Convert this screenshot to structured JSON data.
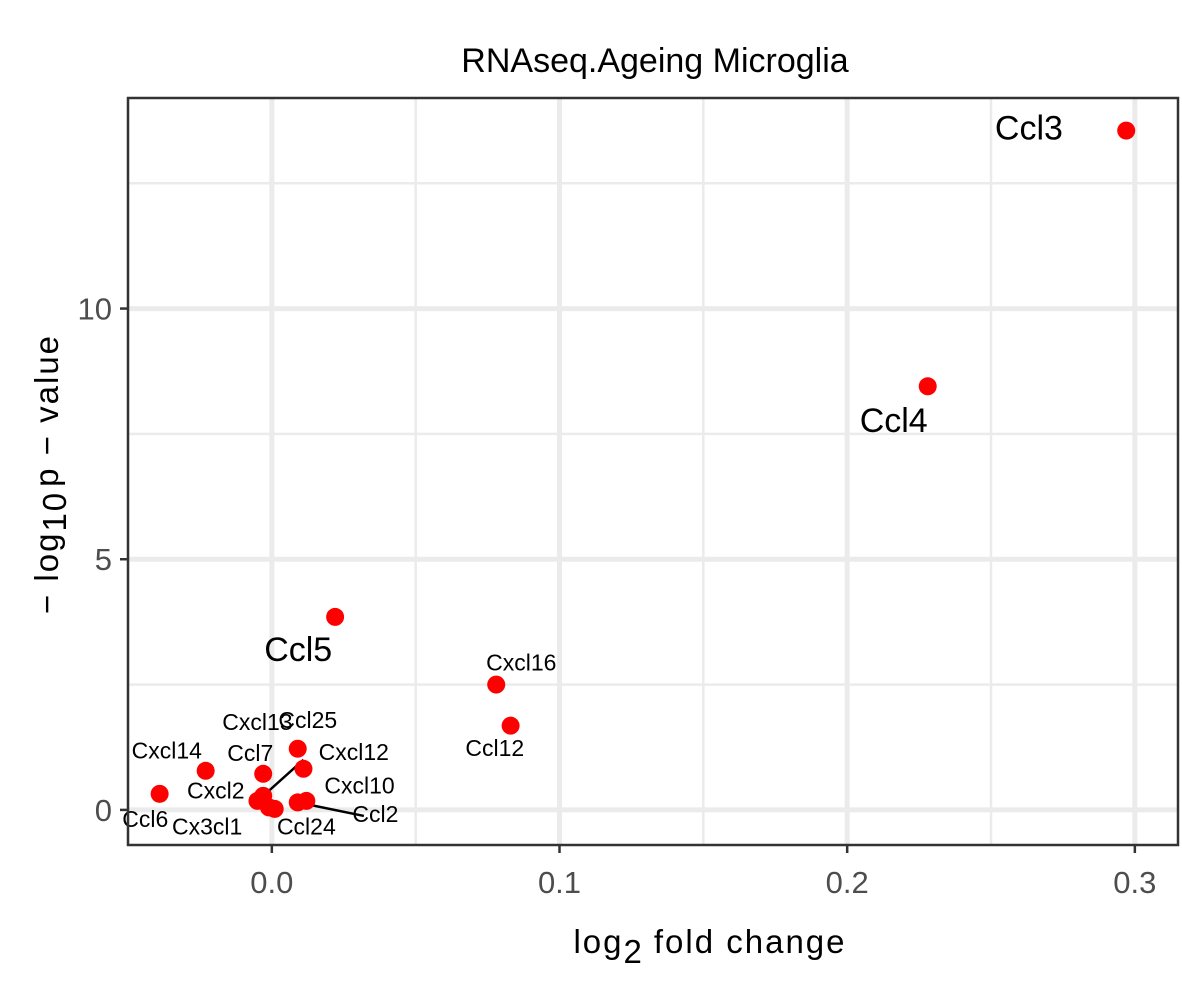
{
  "chart_data": {
    "type": "scatter",
    "title": "RNAseq.Ageing Microglia",
    "xlabel": "log 2 fold change",
    "ylabel": "- log 10 p - value",
    "xlim": [
      -0.05,
      0.315
    ],
    "ylim": [
      -0.7,
      14.2
    ],
    "xticks": [
      0.0,
      0.1,
      0.2,
      0.3
    ],
    "xtick_labels": [
      "0.0",
      "0.1",
      "0.2",
      "0.3"
    ],
    "yticks": [
      0,
      5,
      10
    ],
    "ytick_labels": [
      "0",
      "5",
      "10"
    ],
    "grid": true,
    "point_color": "#ff0000",
    "points": [
      {
        "label": "Ccl3",
        "x": 0.297,
        "y": 13.55,
        "size": "large",
        "lx": 0.275,
        "ly": 13.55,
        "anchor": "end"
      },
      {
        "label": "Ccl4",
        "x": 0.228,
        "y": 8.45,
        "size": "large",
        "lx": 0.228,
        "ly": 7.72,
        "anchor": "end"
      },
      {
        "label": "Ccl5",
        "x": 0.022,
        "y": 3.85,
        "size": "large",
        "lx": 0.021,
        "ly": 3.15,
        "anchor": "end"
      },
      {
        "label": "Cxcl16",
        "x": 0.078,
        "y": 2.5,
        "size": "small",
        "lx": 0.0745,
        "ly": 2.9,
        "anchor": "start"
      },
      {
        "label": "Ccl12",
        "x": 0.083,
        "y": 1.68,
        "size": "small",
        "lx": 0.0775,
        "ly": 1.2,
        "anchor": "middle"
      },
      {
        "label": "Ccl25",
        "x": 0.009,
        "y": 1.22,
        "size": "small",
        "lx": 0.0125,
        "ly": 1.75,
        "anchor": "middle"
      },
      {
        "label": "Cxcl13",
        "x": -0.003,
        "y": 0.28,
        "size": "small",
        "lx": -0.005,
        "ly": 1.72,
        "anchor": "middle",
        "line": true
      },
      {
        "label": "Cxcl12",
        "x": 0.011,
        "y": 0.82,
        "size": "small",
        "lx": 0.0285,
        "ly": 1.12,
        "anchor": "middle"
      },
      {
        "label": "Cxcl14",
        "x": -0.023,
        "y": 0.78,
        "size": "small",
        "lx": -0.0365,
        "ly": 1.15,
        "anchor": "middle"
      },
      {
        "label": "Ccl7",
        "x": -0.003,
        "y": 0.72,
        "size": "small",
        "lx": -0.0075,
        "ly": 1.1,
        "anchor": "middle"
      },
      {
        "label": "Cxcl10",
        "x": 0.012,
        "y": 0.18,
        "size": "small",
        "lx": 0.0305,
        "ly": 0.45,
        "anchor": "middle"
      },
      {
        "label": "Cxcl2",
        "x": -0.005,
        "y": 0.18,
        "size": "small",
        "lx": -0.0195,
        "ly": 0.35,
        "anchor": "middle"
      },
      {
        "label": "Ccl6",
        "x": -0.039,
        "y": 0.32,
        "size": "small",
        "lx": -0.044,
        "ly": -0.22,
        "anchor": "middle"
      },
      {
        "label": "Cx3cl1",
        "x": -0.001,
        "y": 0.05,
        "size": "small",
        "lx": -0.0225,
        "ly": -0.37,
        "anchor": "middle"
      },
      {
        "label": "Ccl24",
        "x": 0.001,
        "y": 0.02,
        "size": "small",
        "lx": 0.012,
        "ly": -0.37,
        "anchor": "middle"
      },
      {
        "label": "Ccl2",
        "x": 0.009,
        "y": 0.15,
        "size": "small",
        "lx": 0.036,
        "ly": -0.12,
        "anchor": "middle",
        "line": true
      }
    ]
  }
}
